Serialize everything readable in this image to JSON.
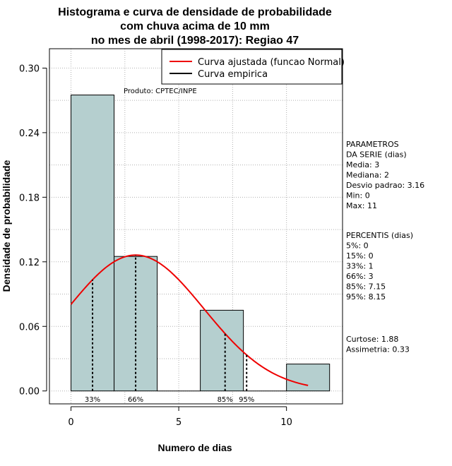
{
  "chart_data": {
    "type": "histogram",
    "title_lines": [
      "Histograma e curva de densidade de probabilidade",
      "com chuva acima de 10 mm",
      "no mes de abril (1998-2017): Regiao 47"
    ],
    "xlabel": "Numero de dias",
    "ylabel": "Densidade de probabilidade",
    "xlim": [
      -1,
      12.6
    ],
    "ylim": [
      -0.012,
      0.318
    ],
    "x_ticks": [
      0,
      5,
      10
    ],
    "y_ticks": [
      0.0,
      0.06,
      0.12,
      0.18,
      0.24,
      0.3
    ],
    "y_tick_labels": [
      "0.00",
      "0.06",
      "0.12",
      "0.18",
      "0.24",
      "0.30"
    ],
    "grid": true,
    "bins": [
      {
        "start": 0,
        "end": 2,
        "density": 0.275
      },
      {
        "start": 2,
        "end": 4,
        "density": 0.125
      },
      {
        "start": 4,
        "end": 6,
        "density": 0.0
      },
      {
        "start": 6,
        "end": 8,
        "density": 0.075
      },
      {
        "start": 8,
        "end": 10,
        "density": 0.0
      },
      {
        "start": 10,
        "end": 12,
        "density": 0.025
      }
    ],
    "bar_color": "#b5cfcf",
    "fitted_curve": {
      "distribution": "normal",
      "mean": 3,
      "sd": 3.16,
      "x_from": 0,
      "x_to": 11,
      "color": "#ee0000"
    },
    "percentile_markers": [
      {
        "x": 1,
        "label": "33%"
      },
      {
        "x": 3,
        "label": "66%"
      },
      {
        "x": 7.15,
        "label": "85%"
      },
      {
        "x": 8.15,
        "label": "95%"
      }
    ],
    "legend": [
      {
        "label": "Curva ajustada (funcao Normal)",
        "color": "#ee0000"
      },
      {
        "label": "Curva empirica",
        "color": "#000000"
      }
    ],
    "legend_position": "top-right",
    "annotation": "Produto: CPTEC/INPE"
  },
  "side_panel": {
    "params_lines": [
      "PARAMETROS",
      "DA SERIE (dias)",
      "  Media: 3",
      "  Mediana: 2",
      "  Desvio padrao: 3.16",
      "  Min: 0",
      "  Max: 11"
    ],
    "percentis_lines": [
      "PERCENTIS (dias)",
      "   5%: 0",
      "  15%: 0",
      "  33%: 1",
      "  66%: 3",
      "  85%: 7.15",
      "  95%: 8.15"
    ],
    "shape_lines": [
      "  Curtose: 1.88",
      "Assimetria: 0.33"
    ]
  }
}
